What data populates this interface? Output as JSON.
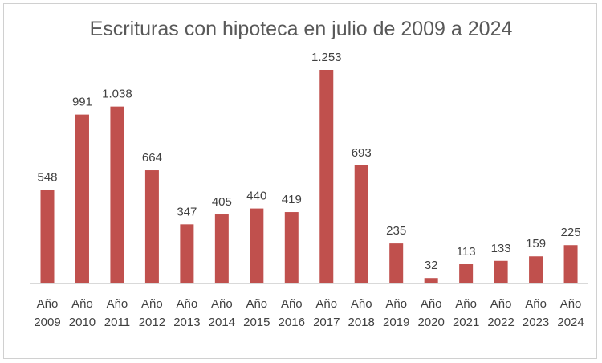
{
  "chart_data": {
    "type": "bar",
    "title": "Escrituras con hipoteca en julio de 2009 a 2024",
    "categories": [
      [
        "Año",
        "2009"
      ],
      [
        "Año",
        "2010"
      ],
      [
        "Año",
        "2011"
      ],
      [
        "Año",
        "2012"
      ],
      [
        "Año",
        "2013"
      ],
      [
        "Año",
        "2014"
      ],
      [
        "Año",
        "2015"
      ],
      [
        "Año",
        "2016"
      ],
      [
        "Año",
        "2017"
      ],
      [
        "Año",
        "2018"
      ],
      [
        "Año",
        "2019"
      ],
      [
        "Año",
        "2020"
      ],
      [
        "Año",
        "2021"
      ],
      [
        "Año",
        "2022"
      ],
      [
        "Año",
        "2023"
      ],
      [
        "Año",
        "2024"
      ]
    ],
    "values": [
      548,
      991,
      1038,
      664,
      347,
      405,
      440,
      419,
      1253,
      693,
      235,
      32,
      113,
      133,
      159,
      225
    ],
    "value_labels": [
      "548",
      "991",
      "1.038",
      "664",
      "347",
      "405",
      "440",
      "419",
      "1.253",
      "693",
      "235",
      "32",
      "113",
      "133",
      "159",
      "225"
    ],
    "xlabel": "",
    "ylabel": "",
    "ylim": [
      0,
      1253
    ],
    "grid": false,
    "bar_color": "#c0504d"
  }
}
